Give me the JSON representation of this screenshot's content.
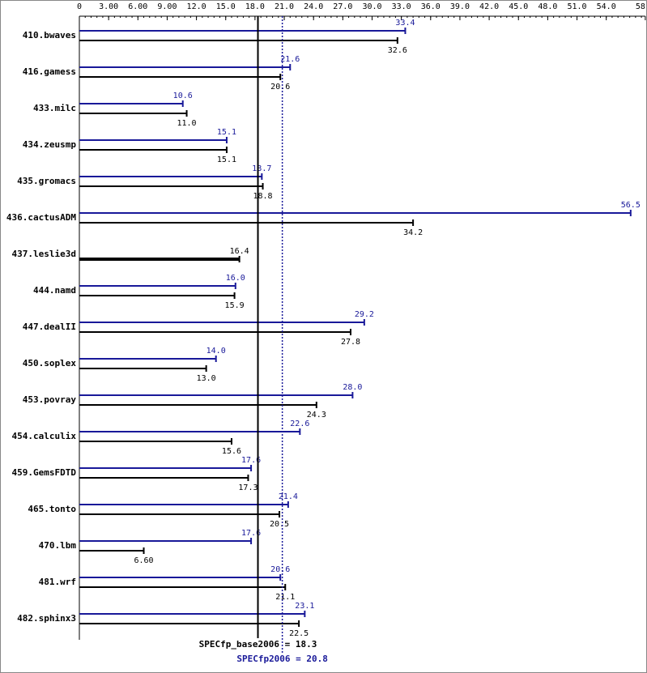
{
  "chart_data": {
    "type": "bar",
    "orientation": "horizontal",
    "categories": [
      "410.bwaves",
      "416.gamess",
      "433.milc",
      "434.zeusmp",
      "435.gromacs",
      "436.cactusADM",
      "437.leslie3d",
      "444.namd",
      "447.dealII",
      "450.soplex",
      "453.povray",
      "454.calculix",
      "459.GemsFDTD",
      "465.tonto",
      "470.lbm",
      "481.wrf",
      "482.sphinx3"
    ],
    "series": [
      {
        "color": "#191999",
        "values": [
          33.4,
          21.6,
          10.6,
          15.1,
          18.7,
          56.5,
          null,
          16.0,
          29.2,
          14.0,
          28.0,
          22.6,
          17.6,
          21.4,
          17.6,
          20.6,
          23.1
        ],
        "value_labels": [
          "33.4",
          "21.6",
          "10.6",
          "15.1",
          "18.7",
          "56.5",
          null,
          "16.0",
          "29.2",
          "14.0",
          "28.0",
          "22.6",
          "17.6",
          "21.4",
          "17.6",
          "20.6",
          "23.1"
        ]
      },
      {
        "color": "#000000",
        "values": [
          32.6,
          20.6,
          11.0,
          15.1,
          18.8,
          34.2,
          16.4,
          15.9,
          27.8,
          13.0,
          24.3,
          15.6,
          17.3,
          20.5,
          6.6,
          21.1,
          22.5
        ],
        "value_labels": [
          "32.6",
          "20.6",
          "11.0",
          "15.1",
          "18.8",
          "34.2",
          "16.4",
          "15.9",
          "27.8",
          "13.0",
          "24.3",
          "15.6",
          "17.3",
          "20.5",
          "6.60",
          "21.1",
          "22.5"
        ]
      }
    ],
    "xlim": [
      0,
      58
    ],
    "xticks": [
      0,
      {
        "value": 3,
        "label": "3.00"
      },
      {
        "value": 6,
        "label": "6.00"
      },
      {
        "value": 9,
        "label": "9.00"
      },
      {
        "value": 12,
        "label": "12.0"
      },
      {
        "value": 15,
        "label": "15.0"
      },
      {
        "value": 18,
        "label": "18.0"
      },
      {
        "value": 21,
        "label": "21.0"
      },
      {
        "value": 24,
        "label": "24.0"
      },
      {
        "value": 27,
        "label": "27.0"
      },
      {
        "value": 30,
        "label": "30.0"
      },
      {
        "value": 33,
        "label": "33.0"
      },
      {
        "value": 36,
        "label": "36.0"
      },
      {
        "value": 39,
        "label": "39.0"
      },
      {
        "value": 42,
        "label": "42.0"
      },
      {
        "value": 45,
        "label": "45.0"
      },
      {
        "value": 48,
        "label": "48.0"
      },
      {
        "value": 51,
        "label": "51.0"
      },
      {
        "value": 54,
        "label": "54.0"
      },
      {
        "value": 58,
        "label": "58.0"
      }
    ],
    "reference_lines": [
      {
        "label": "SPECfp_base2006 = 18.3",
        "value": 18.3,
        "color": "#000000",
        "style": "solid"
      },
      {
        "label": "SPECfp2006 = 20.8",
        "value": 20.8,
        "color": "#191999",
        "style": "dotted"
      }
    ]
  }
}
